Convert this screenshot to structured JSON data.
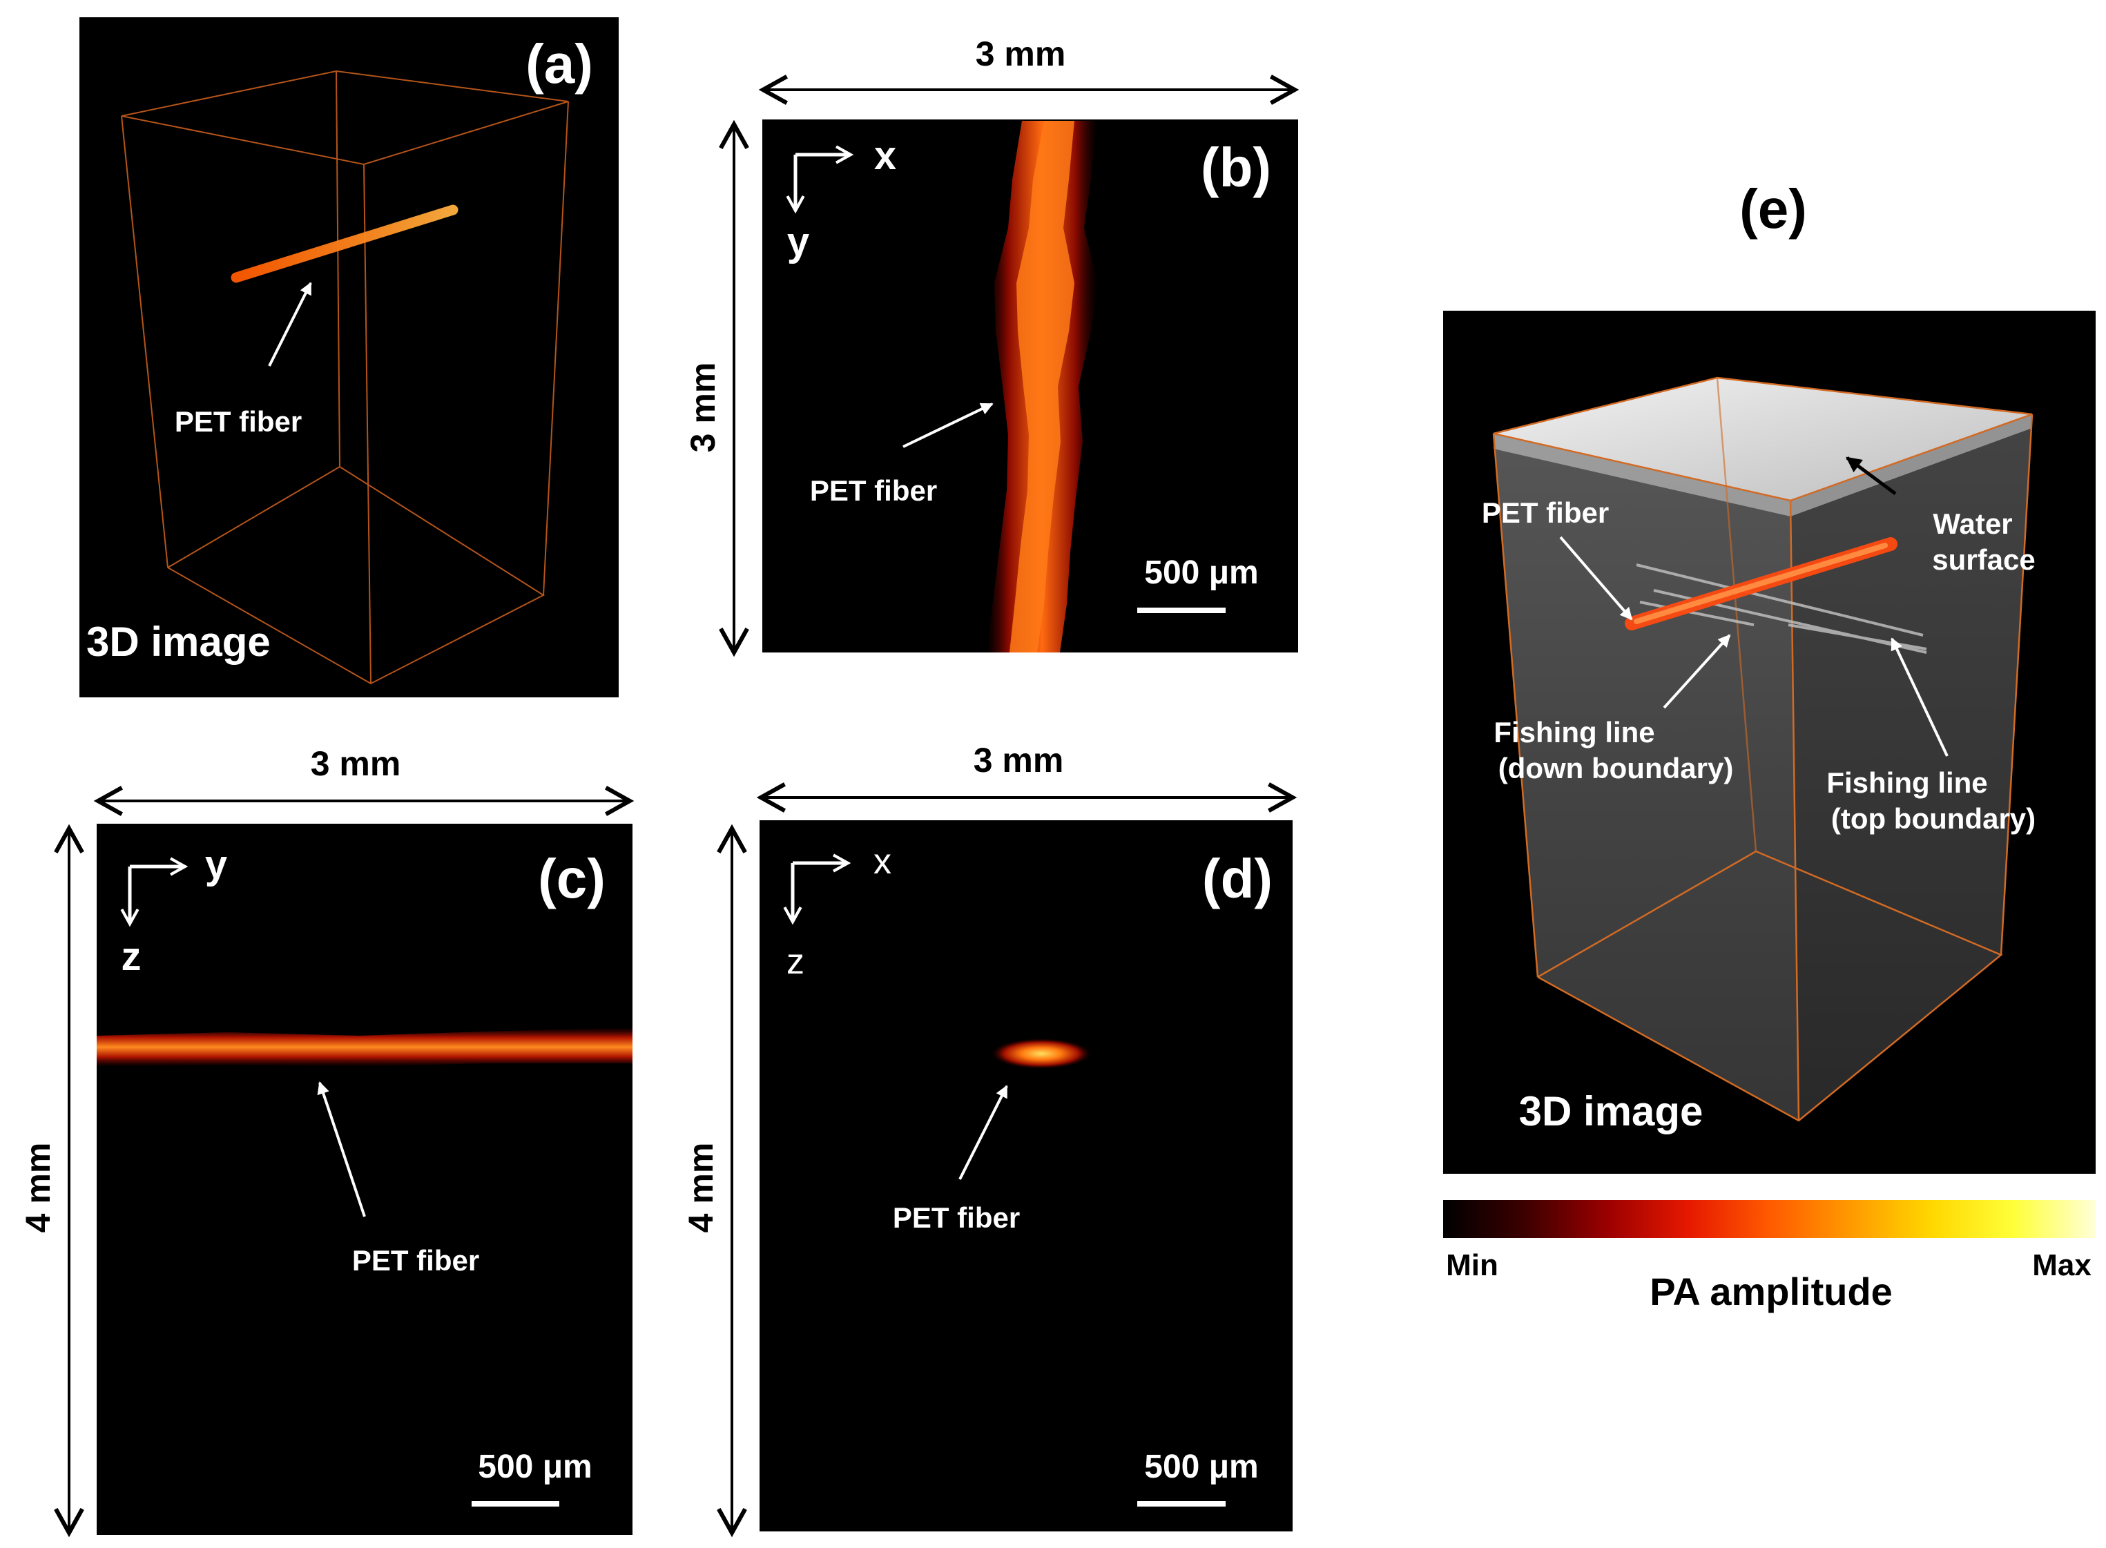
{
  "panel_a": {
    "letter": "(a)",
    "fiber_label": "PET fiber",
    "caption": "3D image"
  },
  "panel_b": {
    "letter": "(b)",
    "axis_x": "x",
    "axis_y": "y",
    "dim_top": "3 mm",
    "dim_left": "3 mm",
    "fiber_label": "PET fiber",
    "scale_bar": "500 μm"
  },
  "panel_c": {
    "letter": "(c)",
    "axis_h": "y",
    "axis_v": "z",
    "dim_top": "3 mm",
    "dim_left": "4 mm",
    "fiber_label": "PET fiber",
    "scale_bar": "500 μm"
  },
  "panel_d": {
    "letter": "(d)",
    "axis_h": "x",
    "axis_v": "z",
    "dim_top": "3 mm",
    "dim_left": "4 mm",
    "fiber_label": "PET fiber",
    "scale_bar": "500 μm"
  },
  "panel_e": {
    "letter": "(e)",
    "fiber_label": "PET fiber",
    "water_line1": "Water",
    "water_line2": "surface",
    "down_line1": "Fishing line",
    "down_line2": "(down boundary)",
    "top_line1": "Fishing line",
    "top_line2": "(top boundary)",
    "caption": "3D image"
  },
  "colorbar": {
    "min_label": "Min",
    "max_label": "Max",
    "title": "PA amplitude",
    "stops": [
      "#000000",
      "#3c0000",
      "#9a0000",
      "#e61800",
      "#ff5a00",
      "#ff9a00",
      "#ffd800",
      "#ffff3a",
      "#ffffd8"
    ]
  }
}
